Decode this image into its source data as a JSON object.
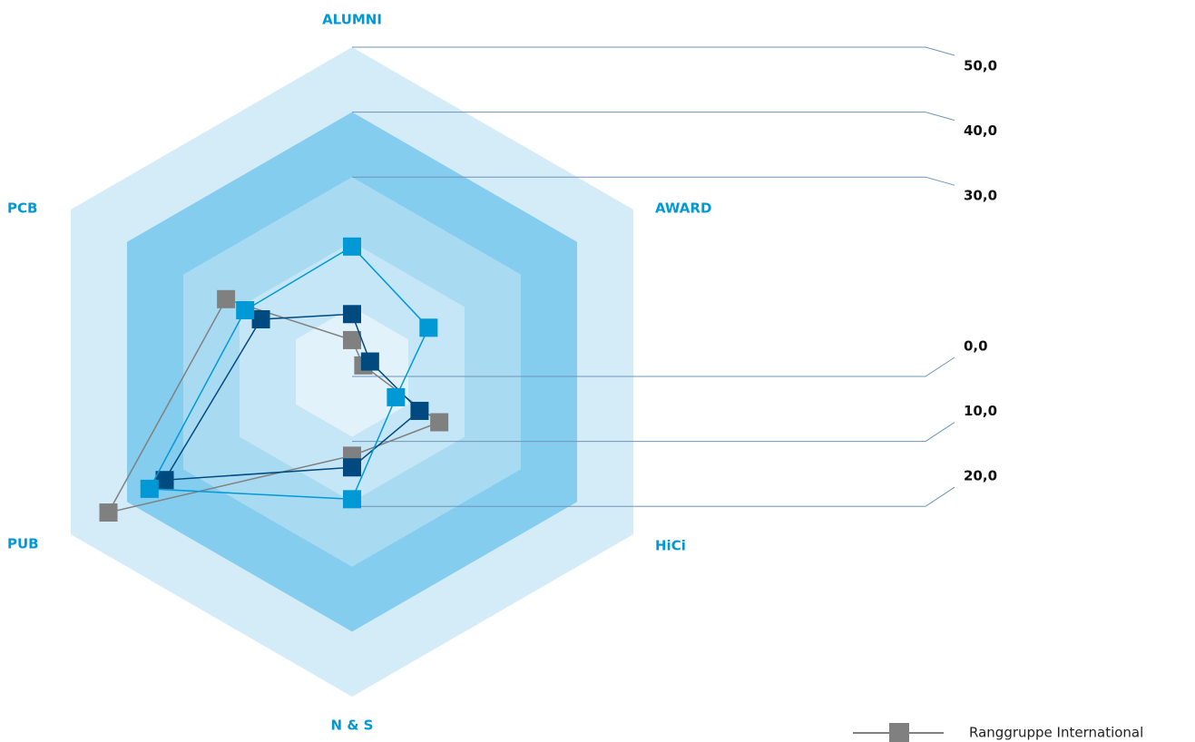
{
  "chart_data": {
    "type": "radar",
    "categories": [
      "ALUMNI",
      "AWARD",
      "HiCi",
      "N & S",
      "PUB",
      "PCB"
    ],
    "ylim": [
      0,
      50
    ],
    "yticks": [
      {
        "value": 0,
        "label": "0,0"
      },
      {
        "value": 10,
        "label": "10,0"
      },
      {
        "value": 20,
        "label": "20,0"
      },
      {
        "value": 30,
        "label": "30,0"
      },
      {
        "value": 40,
        "label": "40,0"
      },
      {
        "value": 50,
        "label": "50,0"
      }
    ],
    "band_colors": [
      "#e1f2fb",
      "#c4e6f6",
      "#a8dbf2",
      "#84cdee",
      "#d4ebf8"
    ],
    "series": [
      {
        "name": "Ranggruppe International",
        "color": "#808080",
        "values": [
          4.9,
          2,
          15.5,
          12.9,
          43.3,
          22.4
        ]
      },
      {
        "color": "#004a80",
        "values": [
          8.9,
          3.2,
          12,
          14.7,
          33.3,
          16.2
        ]
      },
      {
        "color": "#0099d6",
        "values": [
          19.3,
          13.6,
          7.8,
          19.6,
          36,
          19
        ]
      }
    ]
  }
}
